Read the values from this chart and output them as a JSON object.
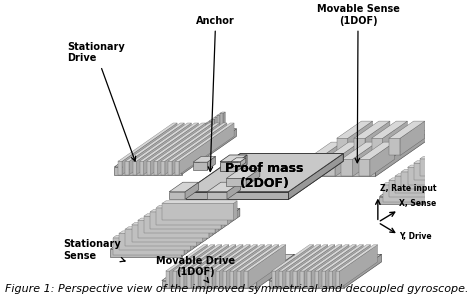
{
  "figure_caption": "Figure 1: Perspective view of the improved symmetrical and decoupled gyroscope.",
  "caption_style": "italic",
  "caption_fontsize": 8.0,
  "bg_color": "#ffffff",
  "labels": {
    "stationary_drive": "Stationary\nDrive",
    "anchor": "Anchor",
    "movable_sense": "Movable Sense\n(1DOF)",
    "proof_mass": "Proof mass\n(2DOF)",
    "stationary_sense": "Stationary\nSense",
    "movable_drive": "Movable Drive\n(1DOF)",
    "z_rate": "Z, Rate input",
    "x_sense": "X, Sense",
    "y_drive": "Y, Drive"
  },
  "label_fontsize": 7.0,
  "proof_mass_fontsize": 9.0,
  "arrow_color": "#000000",
  "text_color": "#000000",
  "c_top": "#d8d8d8",
  "c_left": "#b8b8b8",
  "c_right": "#989898",
  "c_dark": "#787878",
  "c_edge": "#444444"
}
